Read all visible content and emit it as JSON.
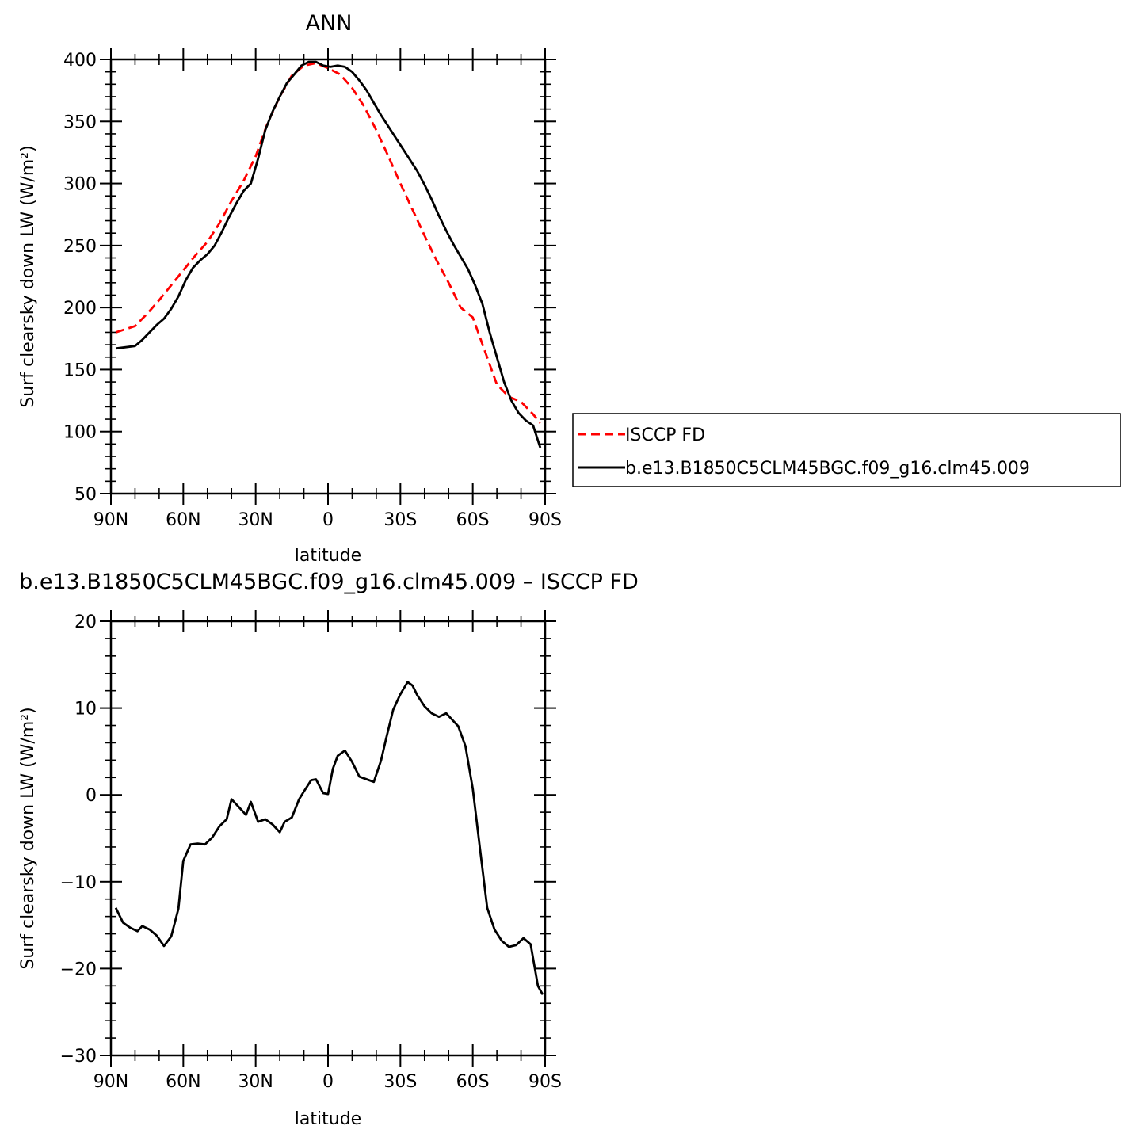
{
  "colors": {
    "model": "#000000",
    "obs": "#ff0000",
    "background": "#ffffff"
  },
  "chart_data": [
    {
      "type": "line",
      "title": "ANN",
      "xlabel": "latitude",
      "ylabel": "Surf clearsky down LW (W/m²)",
      "xlim": [
        -90,
        90
      ],
      "ylim": [
        50,
        400
      ],
      "xticks": [
        {
          "value": -90,
          "label": "90N"
        },
        {
          "value": -60,
          "label": "60N"
        },
        {
          "value": -30,
          "label": "30N"
        },
        {
          "value": 0,
          "label": "0"
        },
        {
          "value": 30,
          "label": "30S"
        },
        {
          "value": 60,
          "label": "60S"
        },
        {
          "value": 90,
          "label": "90S"
        }
      ],
      "yticks": [
        {
          "value": 50,
          "label": "50"
        },
        {
          "value": 100,
          "label": "100"
        },
        {
          "value": 150,
          "label": "150"
        },
        {
          "value": 200,
          "label": "200"
        },
        {
          "value": 250,
          "label": "250"
        },
        {
          "value": 300,
          "label": "300"
        },
        {
          "value": 350,
          "label": "350"
        },
        {
          "value": 400,
          "label": "400"
        }
      ],
      "legend": {
        "placement": "right, outside plot"
      },
      "series": [
        {
          "name": "ISCCP FD",
          "color": "#ff0000",
          "dash": "dashed",
          "x": [
            -88,
            -80,
            -75,
            -70,
            -65,
            -60,
            -55,
            -50,
            -45,
            -40,
            -35,
            -30,
            -25,
            -20,
            -15,
            -10,
            -5,
            0,
            5,
            10,
            15,
            20,
            25,
            30,
            35,
            40,
            45,
            50,
            55,
            60,
            65,
            70,
            75,
            80,
            85,
            88
          ],
          "y": [
            180,
            185,
            195,
            206,
            218,
            230,
            242,
            253,
            268,
            286,
            302,
            322,
            349,
            370,
            387,
            395,
            397,
            393,
            388,
            377,
            362,
            343,
            322,
            300,
            279,
            258,
            238,
            220,
            200,
            192,
            165,
            138,
            128,
            124,
            114,
            107
          ]
        },
        {
          "name": "b.e13.B1850C5CLM45BGC.f09_g16.clm45.009",
          "color": "#000000",
          "dash": "solid",
          "x": [
            -88,
            -80,
            -77,
            -74,
            -71,
            -68,
            -65,
            -62,
            -59,
            -56,
            -53,
            -50,
            -47,
            -44,
            -41,
            -38,
            -35,
            -32,
            -29,
            -26,
            -23,
            -20,
            -17,
            -14,
            -11,
            -8,
            -5,
            -2,
            1,
            4,
            7,
            10,
            13,
            16,
            19,
            22,
            25,
            28,
            31,
            34,
            37,
            40,
            43,
            46,
            49,
            52,
            55,
            58,
            61,
            64,
            67,
            70,
            73,
            76,
            79,
            82,
            85,
            88
          ],
          "y": [
            167,
            169,
            174,
            180,
            186,
            191,
            199,
            209,
            222,
            232,
            238,
            243,
            250,
            261,
            273,
            284,
            294,
            300,
            320,
            343,
            358,
            370,
            381,
            388,
            395,
            398,
            398,
            395,
            394,
            395,
            394,
            390,
            383,
            375,
            365,
            355,
            346,
            337,
            328,
            319,
            310,
            299,
            287,
            274,
            262,
            251,
            241,
            231,
            218,
            203,
            180,
            160,
            140,
            125,
            115,
            109,
            105,
            87
          ]
        }
      ]
    },
    {
      "type": "line",
      "title": "b.e13.B1850C5CLM45BGC.f09_g16.clm45.009 – ISCCP FD",
      "xlabel": "latitude",
      "ylabel": "Surf clearsky down LW (W/m²)",
      "xlim": [
        -90,
        90
      ],
      "ylim": [
        -30,
        20
      ],
      "xticks": [
        {
          "value": -90,
          "label": "90N"
        },
        {
          "value": -60,
          "label": "60N"
        },
        {
          "value": -30,
          "label": "30N"
        },
        {
          "value": 0,
          "label": "0"
        },
        {
          "value": 30,
          "label": "30S"
        },
        {
          "value": 60,
          "label": "60S"
        },
        {
          "value": 90,
          "label": "90S"
        }
      ],
      "yticks": [
        {
          "value": -30,
          "label": "−30"
        },
        {
          "value": -20,
          "label": "−20"
        },
        {
          "value": -10,
          "label": "−10"
        },
        {
          "value": 0,
          "label": "0"
        },
        {
          "value": 10,
          "label": "10"
        },
        {
          "value": 20,
          "label": "20"
        }
      ],
      "series": [
        {
          "color": "#000000",
          "dash": "solid",
          "x": [
            -88,
            -85,
            -82,
            -79,
            -77,
            -74,
            -71,
            -68,
            -65,
            -62,
            -60,
            -57,
            -54,
            -51,
            -48,
            -45,
            -42,
            -40,
            -37,
            -34,
            -32,
            -29,
            -26,
            -23,
            -20,
            -18,
            -15,
            -12,
            -10,
            -7,
            -5,
            -2,
            0,
            2,
            4,
            7,
            10,
            13,
            16,
            19,
            22,
            24,
            27,
            30,
            33,
            35,
            37,
            40,
            43,
            46,
            49,
            51,
            54,
            57,
            60,
            63,
            66,
            69,
            72,
            75,
            78,
            81,
            84,
            87,
            89
          ],
          "y": [
            -13,
            -14.7,
            -15.3,
            -15.7,
            -15.1,
            -15.5,
            -16.2,
            -17.4,
            -16.3,
            -13.1,
            -7.6,
            -5.7,
            -5.6,
            -5.7,
            -4.9,
            -3.6,
            -2.8,
            -0.5,
            -1.4,
            -2.3,
            -0.8,
            -3.1,
            -2.8,
            -3.4,
            -4.3,
            -3.1,
            -2.6,
            -0.5,
            0.4,
            1.7,
            1.8,
            0.2,
            0.1,
            3,
            4.5,
            5.1,
            3.8,
            2.1,
            1.8,
            1.5,
            4,
            6.4,
            9.8,
            11.6,
            13,
            12.6,
            11.5,
            10.2,
            9.4,
            9,
            9.4,
            8.8,
            7.9,
            5.6,
            0.7,
            -6.2,
            -13,
            -15.5,
            -16.8,
            -17.5,
            -17.3,
            -16.5,
            -17.2,
            -22,
            -23
          ]
        }
      ]
    }
  ]
}
